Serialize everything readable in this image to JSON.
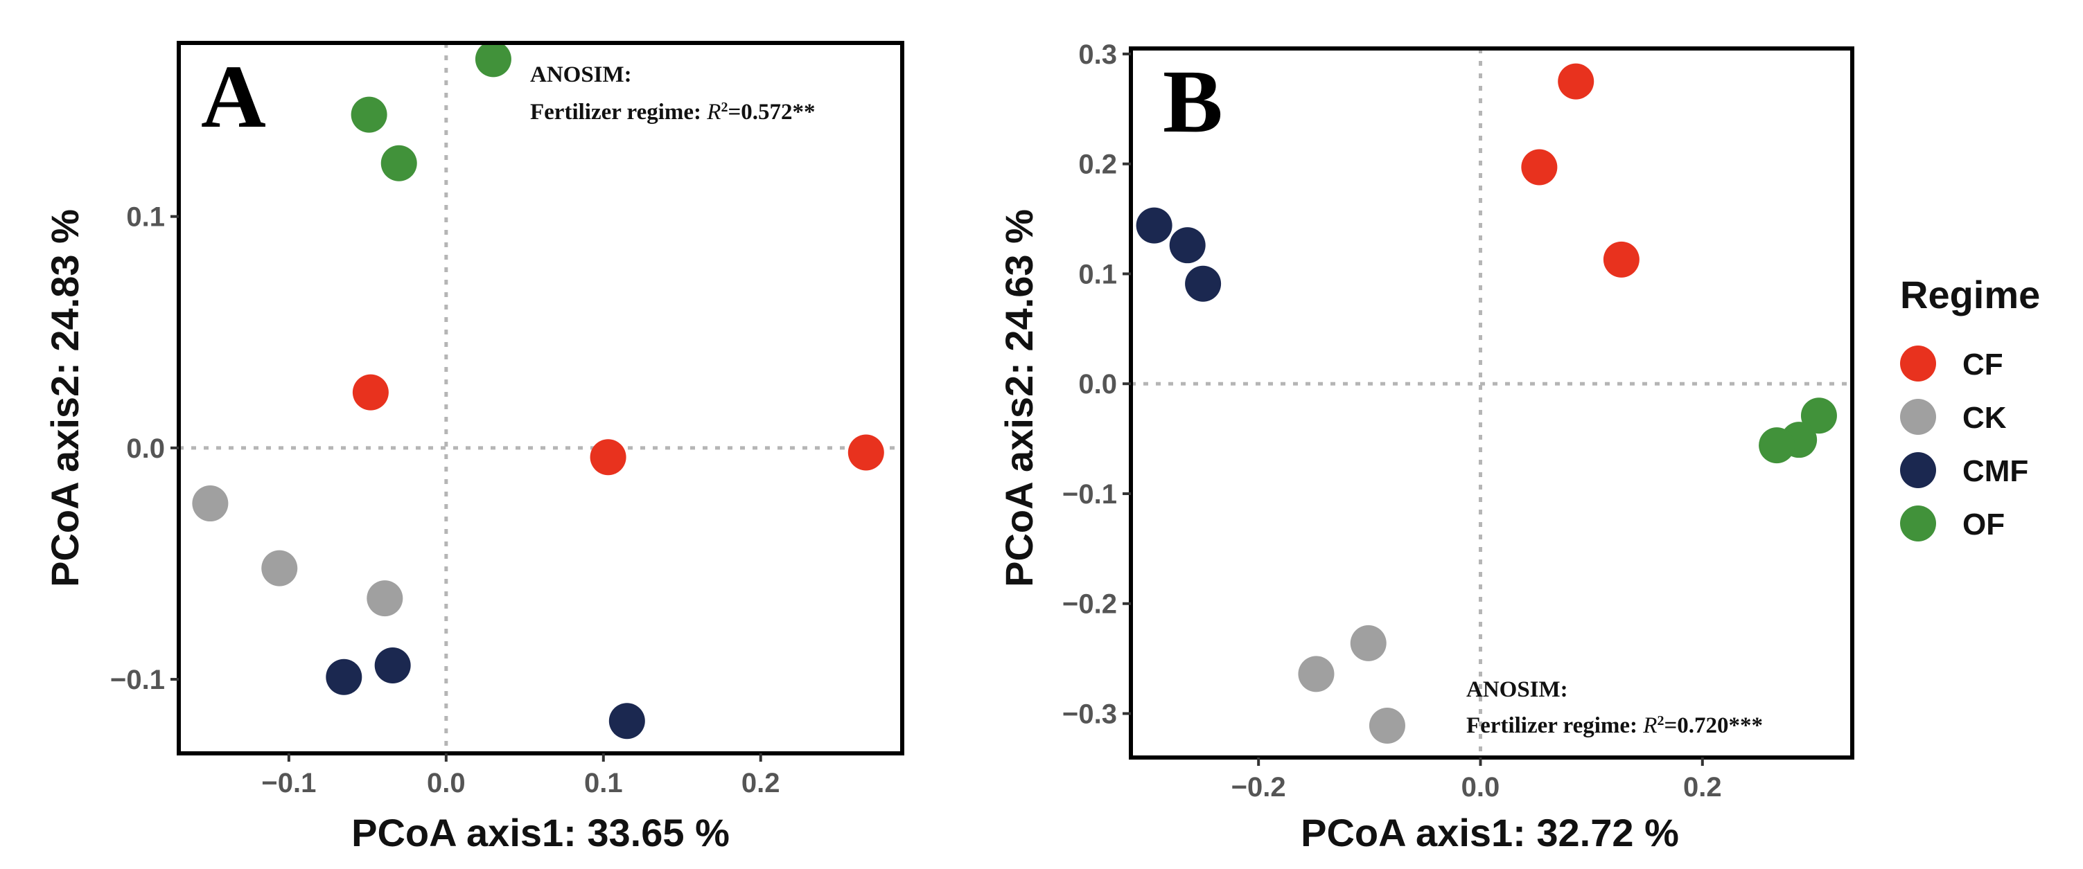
{
  "chart_data": [
    {
      "type": "scatter",
      "panel_label": "A",
      "xlabel": "PCoA axis1:  33.65 %",
      "ylabel": "PCoA axis2:  24.83 %",
      "xlim": [
        -0.17,
        0.29
      ],
      "ylim": [
        -0.132,
        0.175
      ],
      "xticks": [
        -0.1,
        0.0,
        0.1,
        0.2
      ],
      "xtick_labels": [
        "−0.1",
        "0.0",
        "0.1",
        "0.2"
      ],
      "yticks": [
        -0.1,
        0.0,
        0.1
      ],
      "ytick_labels": [
        "−0.1",
        "0.0",
        "0.1"
      ],
      "reference_lines": {
        "x": 0,
        "y": 0
      },
      "annotation": {
        "line1": "ANOSIM:",
        "line2_prefix": "Fertilizer regime: ",
        "r_symbol": "R",
        "r_sup": "2",
        "value": "=0.572**"
      },
      "series": [
        {
          "name": "CF",
          "points": [
            [
              -0.048,
              0.024
            ],
            [
              0.103,
              -0.004
            ],
            [
              0.267,
              -0.002
            ]
          ]
        },
        {
          "name": "CK",
          "points": [
            [
              -0.15,
              -0.024
            ],
            [
              -0.106,
              -0.052
            ],
            [
              -0.039,
              -0.065
            ]
          ]
        },
        {
          "name": "CMF",
          "points": [
            [
              -0.065,
              -0.099
            ],
            [
              -0.034,
              -0.094
            ],
            [
              0.115,
              -0.118
            ]
          ]
        },
        {
          "name": "OF",
          "points": [
            [
              0.03,
              0.168
            ],
            [
              -0.049,
              0.144
            ],
            [
              -0.03,
              0.123
            ]
          ]
        }
      ]
    },
    {
      "type": "scatter",
      "panel_label": "B",
      "xlabel": "PCoA axis1:  32.72 %",
      "ylabel": "PCoA axis2:  24.63 %",
      "xlim": [
        -0.315,
        0.335
      ],
      "ylim": [
        -0.34,
        0.305
      ],
      "xticks": [
        -0.2,
        0.0,
        0.2
      ],
      "xtick_labels": [
        "−0.2",
        "0.0",
        "0.2"
      ],
      "yticks": [
        -0.3,
        -0.2,
        -0.1,
        0.0,
        0.1,
        0.2,
        0.3
      ],
      "ytick_labels": [
        "−0.3",
        "−0.2",
        "−0.1",
        "0.0",
        "0.1",
        "0.2",
        "0.3"
      ],
      "reference_lines": {
        "x": 0,
        "y": 0
      },
      "annotation": {
        "line1": "ANOSIM:",
        "line2_prefix": "Fertilizer regime: ",
        "r_symbol": "R",
        "r_sup": "2",
        "value": "=0.720***"
      },
      "series": [
        {
          "name": "CF",
          "points": [
            [
              0.086,
              0.275
            ],
            [
              0.053,
              0.197
            ],
            [
              0.127,
              0.113
            ]
          ]
        },
        {
          "name": "CK",
          "points": [
            [
              -0.101,
              -0.236
            ],
            [
              -0.148,
              -0.264
            ],
            [
              -0.084,
              -0.311
            ]
          ]
        },
        {
          "name": "CMF",
          "points": [
            [
              -0.294,
              0.144
            ],
            [
              -0.264,
              0.126
            ],
            [
              -0.25,
              0.091
            ]
          ]
        },
        {
          "name": "OF",
          "points": [
            [
              0.305,
              -0.029
            ],
            [
              0.287,
              -0.051
            ],
            [
              0.267,
              -0.056
            ]
          ]
        }
      ]
    }
  ],
  "legend": {
    "title": "Regime",
    "items": [
      {
        "name": "CF",
        "color": "#e8321e"
      },
      {
        "name": "CK",
        "color": "#a0a0a0"
      },
      {
        "name": "CMF",
        "color": "#1b2850"
      },
      {
        "name": "OF",
        "color": "#41923a"
      }
    ]
  },
  "colors": {
    "CF": "#e8321e",
    "CK": "#a0a0a0",
    "CMF": "#1b2850",
    "OF": "#41923a"
  }
}
